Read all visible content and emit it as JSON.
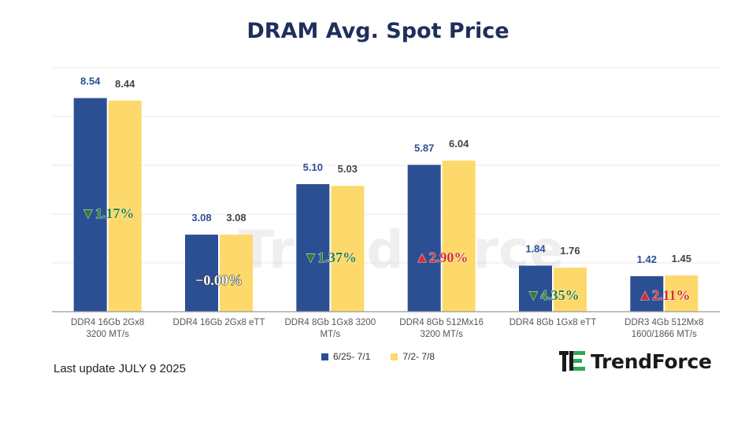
{
  "title": "DRAM Avg. Spot Price",
  "footnote": "Last update JULY 9  2025",
  "brand": {
    "name": "TrendForce",
    "watermark": "TrendForce",
    "icon": "trendforce-logo-icon"
  },
  "colors": {
    "series1": "#2c4f94",
    "series2": "#fdd96b",
    "down": "#2e7d32",
    "up": "#d32f2f",
    "flat": "#ffffff"
  },
  "chart_data": {
    "type": "bar",
    "title": "DRAM Avg. Spot Price",
    "categories": [
      [
        "DDR4 16Gb 2Gx8",
        "3200 MT/s"
      ],
      [
        "DDR4 16Gb 2Gx8 eTT"
      ],
      [
        "DDR4 8Gb 1Gx8 3200",
        "MT/s"
      ],
      [
        "DDR4 8Gb 512Mx16",
        "3200 MT/s"
      ],
      [
        "DDR4 8Gb 1Gx8 eTT"
      ],
      [
        "DDR3 4Gb 512Mx8",
        "1600/1866  MT/s"
      ]
    ],
    "series": [
      {
        "name": "6/25- 7/1",
        "values": [
          8.54,
          3.08,
          5.1,
          5.87,
          1.84,
          1.42
        ]
      },
      {
        "name": "7/2- 7/8",
        "values": [
          8.44,
          3.08,
          5.03,
          6.04,
          1.76,
          1.45
        ]
      }
    ],
    "value_labels": [
      [
        "8.54",
        "3.08",
        "5.10",
        "5.87",
        "1.84",
        "1.42"
      ],
      [
        "8.44",
        "3.08",
        "5.03",
        "6.04",
        "1.76",
        "1.45"
      ]
    ],
    "changes": [
      {
        "direction": "down",
        "symbol": "▼",
        "text": "1.17%"
      },
      {
        "direction": "flat",
        "symbol": "",
        "text": "−0.00%"
      },
      {
        "direction": "down",
        "symbol": "▼",
        "text": "1.37%"
      },
      {
        "direction": "up",
        "symbol": "▲",
        "text": "2.90%"
      },
      {
        "direction": "down",
        "symbol": "▼",
        "text": "4.35%"
      },
      {
        "direction": "up",
        "symbol": "▲",
        "text": "2.11%"
      }
    ],
    "ylim": [
      0,
      10
    ],
    "grid": true,
    "legend_position": "bottom"
  }
}
